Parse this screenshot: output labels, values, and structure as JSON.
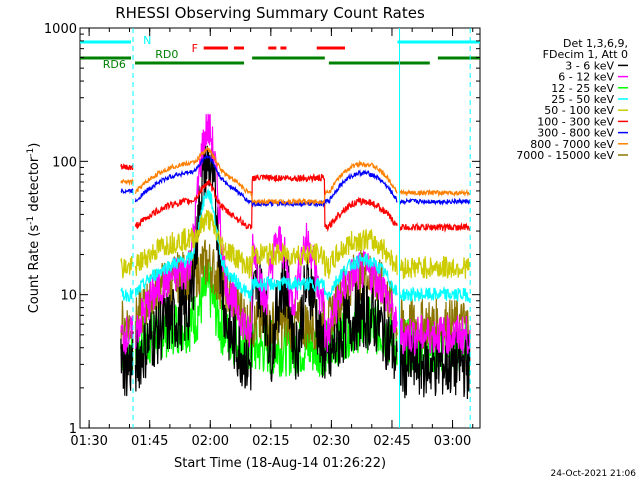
{
  "chart_data": {
    "type": "line",
    "title": "RHESSI Observing Summary Count Rates",
    "xlabel": "Start Time (18-Aug-14 01:26:22)",
    "ylabel": "Count Rate (s",
    "ylabel_sup": "-1",
    "ylabel_mid": " detector",
    "ylabel_end": ")",
    "y_scale": "log",
    "ylim": [
      1,
      1000
    ],
    "xlim_minutes": [
      1.37,
      100.43
    ],
    "x_ticks": [
      {
        "label": "01:30",
        "minute": 3.63
      },
      {
        "label": "01:45",
        "minute": 18.63
      },
      {
        "label": "02:00",
        "minute": 33.63
      },
      {
        "label": "02:15",
        "minute": 48.63
      },
      {
        "label": "02:30",
        "minute": 63.63
      },
      {
        "label": "02:45",
        "minute": 78.63
      },
      {
        "label": "03:00",
        "minute": 93.63
      }
    ],
    "y_ticks": [
      {
        "label": "1",
        "value": 1
      },
      {
        "label": "10",
        "value": 10
      },
      {
        "label": "100",
        "value": 100
      },
      {
        "label": "1000",
        "value": 1000
      }
    ],
    "legend": {
      "placement": "right",
      "header": [
        "Det 1,3,6,9,",
        "FDecim 1, Att 0"
      ],
      "entries": [
        {
          "name": "3 - 6 keV",
          "color": "#000000"
        },
        {
          "name": "6 - 12 keV",
          "color": "#ff00ff"
        },
        {
          "name": "12 - 25 keV",
          "color": "#00ff00"
        },
        {
          "name": "25 - 50 keV",
          "color": "#00ffff"
        },
        {
          "name": "50 - 100 keV",
          "color": "#cccc00"
        },
        {
          "name": "100 - 300 keV",
          "color": "#ff0000"
        },
        {
          "name": "300 - 800 keV",
          "color": "#0000ff"
        },
        {
          "name": "800 - 7000 keV",
          "color": "#ff8000"
        },
        {
          "name": "7000 - 15000 keV",
          "color": "#8b7500"
        }
      ]
    },
    "flag_labels": {
      "N": "N",
      "F": "F",
      "RD0": "RD0",
      "RD6": "RD6"
    },
    "flag_colors": {
      "N": "#00ffff",
      "F": "#ff0000",
      "RD": "#008000"
    },
    "flags": {
      "night_segments": [
        [
          1.37,
          14.0
        ],
        [
          80.0,
          100.43
        ]
      ],
      "flare_segments": [
        [
          32.0,
          38.0
        ],
        [
          39.5,
          42.0
        ],
        [
          48.0,
          50.0
        ],
        [
          51.0,
          52.5
        ],
        [
          60.0,
          67.0
        ]
      ],
      "rd0_segments": [
        [
          15.0,
          42.0
        ],
        [
          63.0,
          88.0
        ]
      ],
      "rd6_segments": [
        [
          1.37,
          14.0
        ],
        [
          44.0,
          62.0
        ],
        [
          90.0,
          100.43
        ]
      ],
      "night_dashed_lines": [
        14.5,
        98.0
      ],
      "night_solid_lines": [
        80.5
      ]
    },
    "data_gaps": [
      [
        14.5,
        15.0
      ],
      [
        80.0,
        80.5
      ]
    ],
    "series_shapes": [
      {
        "name": "100 - 300 keV",
        "base": 40,
        "color": "#ff0000"
      },
      {
        "name": "300 - 800 keV",
        "base": 65,
        "color": "#0000ff"
      },
      {
        "name": "800 - 7000 keV",
        "base": 75,
        "color": "#ff8000"
      }
    ],
    "timestamp": "24-Oct-2021 21:06"
  }
}
